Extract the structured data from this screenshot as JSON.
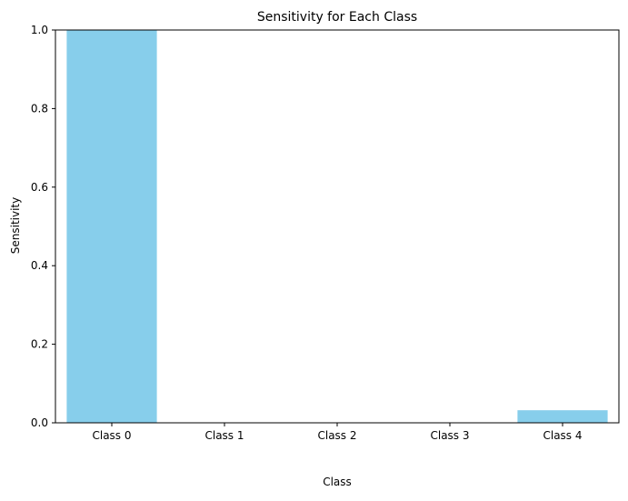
{
  "chart_data": {
    "type": "bar",
    "title": "Sensitivity for Each Class",
    "xlabel": "Class",
    "ylabel": "Sensitivity",
    "categories": [
      "Class 0",
      "Class 1",
      "Class 2",
      "Class 3",
      "Class 4"
    ],
    "values": [
      1.0,
      0.0,
      0.0,
      0.0,
      0.032
    ],
    "ylim": [
      0,
      1.0
    ],
    "yticks": [
      0.0,
      0.2,
      0.4,
      0.6,
      0.8,
      1.0
    ],
    "ytick_labels": [
      "0.0",
      "0.2",
      "0.4",
      "0.6",
      "0.8",
      "1.0"
    ],
    "bar_color": "#87ceeb",
    "grid": false,
    "legend": "none"
  }
}
